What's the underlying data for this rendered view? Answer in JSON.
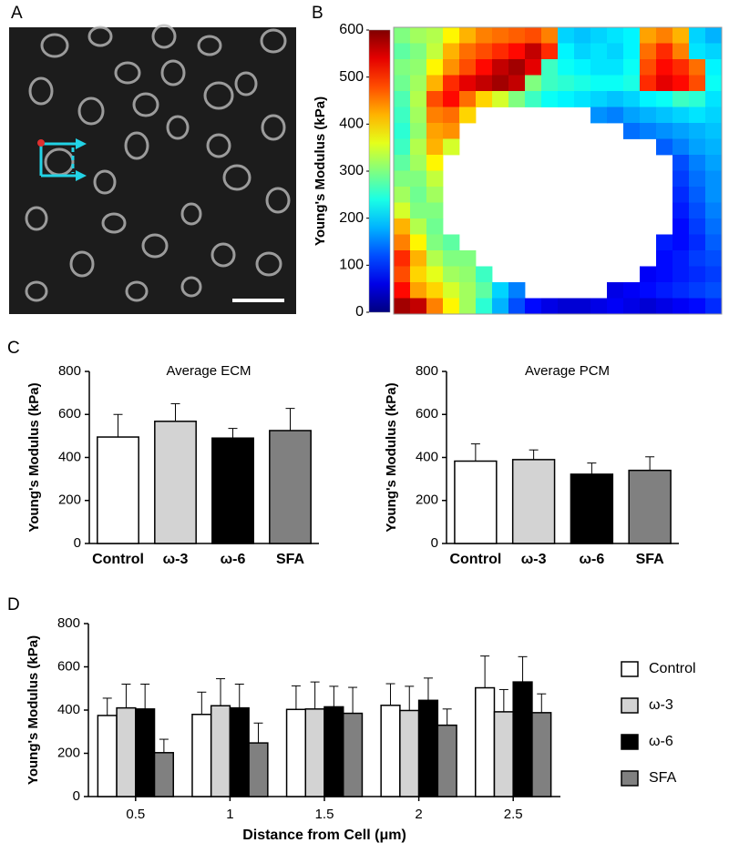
{
  "chart_data": [
    {
      "type": "image",
      "panel_label": "A"
    },
    {
      "type": "heatmap",
      "panel_label": "B",
      "colorbar_label": "Young's Modulus (kPa)",
      "colormap": "jet",
      "zlim": [
        0,
        600
      ],
      "zticks": [
        0,
        100,
        200,
        300,
        400,
        500,
        600
      ],
      "values": [
        [
          300,
          320,
          330,
          380,
          420,
          450,
          460,
          470,
          480,
          450,
          200,
          190,
          200,
          210,
          220,
          430,
          450,
          420,
          200,
          180
        ],
        [
          280,
          300,
          340,
          420,
          460,
          480,
          500,
          520,
          560,
          500,
          220,
          200,
          210,
          200,
          220,
          460,
          500,
          450,
          210,
          200
        ],
        [
          300,
          310,
          380,
          440,
          480,
          520,
          560,
          580,
          540,
          260,
          230,
          220,
          210,
          210,
          230,
          480,
          520,
          500,
          460,
          220
        ],
        [
          290,
          320,
          420,
          500,
          540,
          560,
          580,
          560,
          300,
          260,
          250,
          240,
          230,
          230,
          240,
          500,
          540,
          520,
          480,
          230
        ],
        [
          270,
          330,
          480,
          520,
          460,
          400,
          350,
          300,
          260,
          230,
          220,
          210,
          200,
          190,
          200,
          220,
          230,
          260,
          250,
          210
        ],
        [
          260,
          320,
          450,
          460,
          400,
          null,
          null,
          null,
          null,
          null,
          null,
          null,
          160,
          150,
          170,
          180,
          190,
          200,
          210,
          200
        ],
        [
          250,
          310,
          430,
          440,
          null,
          null,
          null,
          null,
          null,
          null,
          null,
          null,
          null,
          null,
          140,
          150,
          160,
          170,
          180,
          190
        ],
        [
          260,
          330,
          420,
          350,
          null,
          null,
          null,
          null,
          null,
          null,
          null,
          null,
          null,
          null,
          null,
          null,
          130,
          150,
          170,
          180
        ],
        [
          280,
          320,
          380,
          null,
          null,
          null,
          null,
          null,
          null,
          null,
          null,
          null,
          null,
          null,
          null,
          null,
          null,
          120,
          150,
          170
        ],
        [
          300,
          300,
          340,
          null,
          null,
          null,
          null,
          null,
          null,
          null,
          null,
          null,
          null,
          null,
          null,
          null,
          null,
          110,
          140,
          160
        ],
        [
          320,
          290,
          320,
          null,
          null,
          null,
          null,
          null,
          null,
          null,
          null,
          null,
          null,
          null,
          null,
          null,
          null,
          100,
          130,
          160
        ],
        [
          350,
          300,
          300,
          null,
          null,
          null,
          null,
          null,
          null,
          null,
          null,
          null,
          null,
          null,
          null,
          null,
          null,
          90,
          120,
          150
        ],
        [
          420,
          330,
          290,
          null,
          null,
          null,
          null,
          null,
          null,
          null,
          null,
          null,
          null,
          null,
          null,
          null,
          null,
          80,
          110,
          140
        ],
        [
          450,
          380,
          300,
          280,
          null,
          null,
          null,
          null,
          null,
          null,
          null,
          null,
          null,
          null,
          null,
          null,
          90,
          80,
          100,
          130
        ],
        [
          500,
          420,
          330,
          300,
          300,
          null,
          null,
          null,
          null,
          null,
          null,
          null,
          null,
          null,
          null,
          null,
          80,
          90,
          110,
          120
        ],
        [
          480,
          400,
          360,
          320,
          310,
          260,
          null,
          null,
          null,
          null,
          null,
          null,
          null,
          null,
          null,
          70,
          80,
          90,
          100,
          110
        ],
        [
          520,
          430,
          400,
          350,
          320,
          280,
          200,
          150,
          null,
          null,
          null,
          null,
          null,
          60,
          70,
          80,
          90,
          100,
          110,
          120
        ],
        [
          580,
          560,
          450,
          380,
          320,
          250,
          180,
          120,
          80,
          60,
          50,
          50,
          60,
          70,
          60,
          50,
          60,
          70,
          80,
          100
        ]
      ]
    },
    {
      "type": "bar",
      "panel_label": "C",
      "title": "Average ECM",
      "ylabel": "Young's Modulus (kPa)",
      "categories": [
        "Control",
        "ω-3",
        "ω-6",
        "SFA"
      ],
      "values": [
        495,
        568,
        490,
        525
      ],
      "errors": [
        105,
        82,
        45,
        103
      ],
      "colors": [
        "#ffffff",
        "#d3d3d3",
        "#000000",
        "#808080"
      ],
      "ylim": [
        0,
        800
      ],
      "yticks": [
        0,
        200,
        400,
        600,
        800
      ]
    },
    {
      "type": "bar",
      "title": "Average PCM",
      "ylabel": "Young's Modulus (kPa)",
      "categories": [
        "Control",
        "ω-3",
        "ω-6",
        "SFA"
      ],
      "values": [
        383,
        390,
        322,
        340
      ],
      "errors": [
        80,
        45,
        52,
        63
      ],
      "colors": [
        "#ffffff",
        "#d3d3d3",
        "#000000",
        "#808080"
      ],
      "ylim": [
        0,
        800
      ],
      "yticks": [
        0,
        200,
        400,
        600,
        800
      ]
    },
    {
      "type": "grouped_bar",
      "panel_label": "D",
      "xlabel": "Distance from Cell (μm)",
      "ylabel": "Young's Modulus (kPa)",
      "categories": [
        "0.5",
        "1",
        "1.5",
        "2",
        "2.5"
      ],
      "ylim": [
        0,
        800
      ],
      "yticks": [
        0,
        200,
        400,
        600,
        800
      ],
      "legend": "right",
      "series": [
        {
          "name": "Control",
          "color": "#ffffff",
          "values": [
            375,
            380,
            403,
            422,
            503
          ],
          "errors": [
            80,
            103,
            109,
            100,
            147
          ]
        },
        {
          "name": "ω-3",
          "color": "#d3d3d3",
          "values": [
            410,
            420,
            405,
            398,
            392
          ],
          "errors": [
            110,
            125,
            125,
            112,
            103
          ]
        },
        {
          "name": "ω-6",
          "color": "#000000",
          "values": [
            405,
            410,
            415,
            445,
            530
          ],
          "errors": [
            115,
            110,
            95,
            103,
            117
          ]
        },
        {
          "name": "SFA",
          "color": "#808080",
          "values": [
            203,
            248,
            385,
            330,
            388
          ],
          "errors": [
            62,
            92,
            120,
            75,
            87
          ]
        }
      ]
    }
  ]
}
